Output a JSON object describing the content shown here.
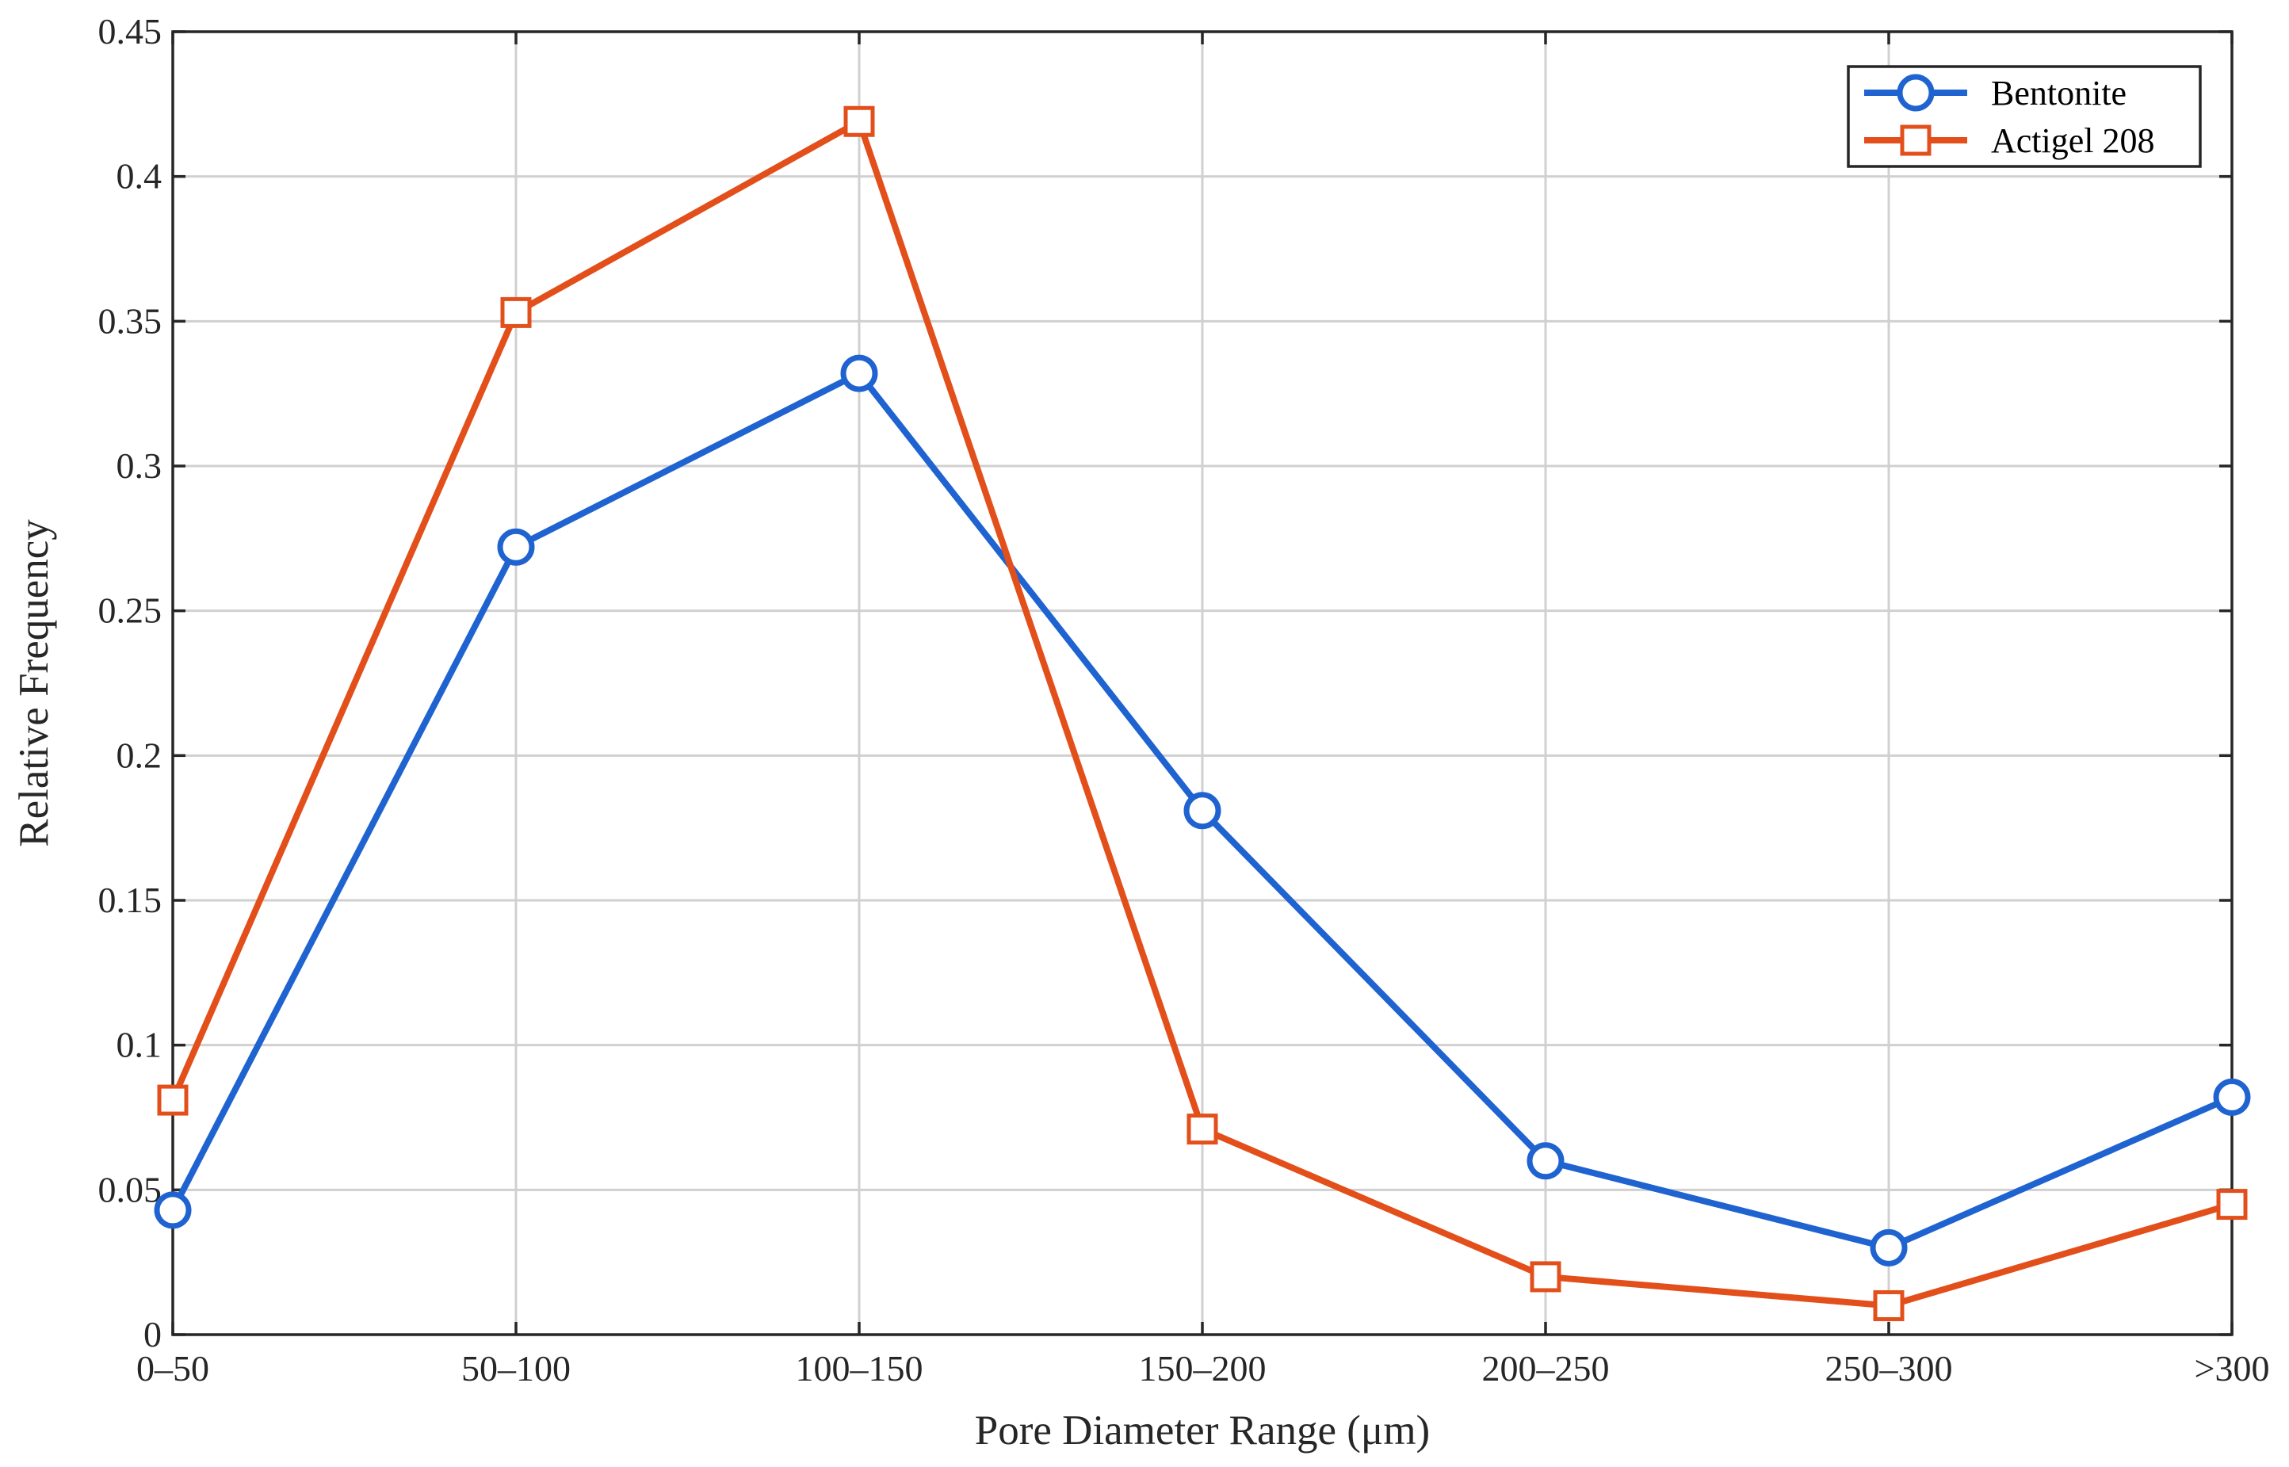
{
  "chart_data": {
    "type": "line",
    "categories": [
      "0–50",
      "50–100",
      "100–150",
      "150–200",
      "200–250",
      "250–300",
      ">300"
    ],
    "xlabel": "Pore Diameter Range (μm)",
    "ylabel": "Relative Frequency",
    "ylim": [
      0,
      0.45
    ],
    "yticks": [
      0,
      0.05,
      0.1,
      0.15,
      0.2,
      0.25,
      0.3,
      0.35,
      0.4,
      0.45
    ],
    "ytick_labels": [
      "0",
      "0.05",
      "0.1",
      "0.15",
      "0.2",
      "0.25",
      "0.3",
      "0.35",
      "0.4",
      "0.45"
    ],
    "grid": true,
    "legend_position": "top-right",
    "series": [
      {
        "name": "Bentonite",
        "color": "#1f63d1",
        "marker": "circle",
        "values": [
          0.043,
          0.272,
          0.332,
          0.181,
          0.06,
          0.03,
          0.082
        ]
      },
      {
        "name": "Actigel 208",
        "color": "#e34f1b",
        "marker": "square",
        "values": [
          0.081,
          0.353,
          0.419,
          0.071,
          0.02,
          0.01,
          0.045
        ]
      }
    ]
  }
}
